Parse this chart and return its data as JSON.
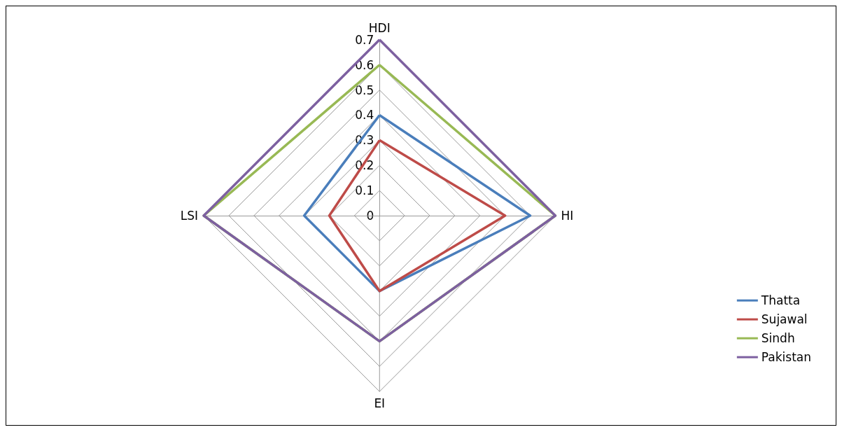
{
  "chart_data": {
    "type": "radar",
    "categories": [
      "HDI",
      "HI",
      "EI",
      "LSI"
    ],
    "series": [
      {
        "name": "Thatta",
        "color": "#4a7ebb",
        "values": [
          0.4,
          0.6,
          0.3,
          0.3
        ]
      },
      {
        "name": "Sujawal",
        "color": "#be4b48",
        "values": [
          0.3,
          0.5,
          0.3,
          0.2
        ]
      },
      {
        "name": "Sindh",
        "color": "#98b954",
        "values": [
          0.6,
          0.7,
          0.5,
          0.7
        ]
      },
      {
        "name": "Pakistan",
        "color": "#7d60a0",
        "values": [
          0.7,
          0.7,
          0.5,
          0.7
        ]
      }
    ],
    "ylim": [
      0,
      0.7
    ],
    "yticks": [
      0,
      0.1,
      0.2,
      0.3,
      0.4,
      0.5,
      0.6,
      0.7
    ],
    "grid": true,
    "legend": "right",
    "marker": "none",
    "line_style": "solid"
  }
}
